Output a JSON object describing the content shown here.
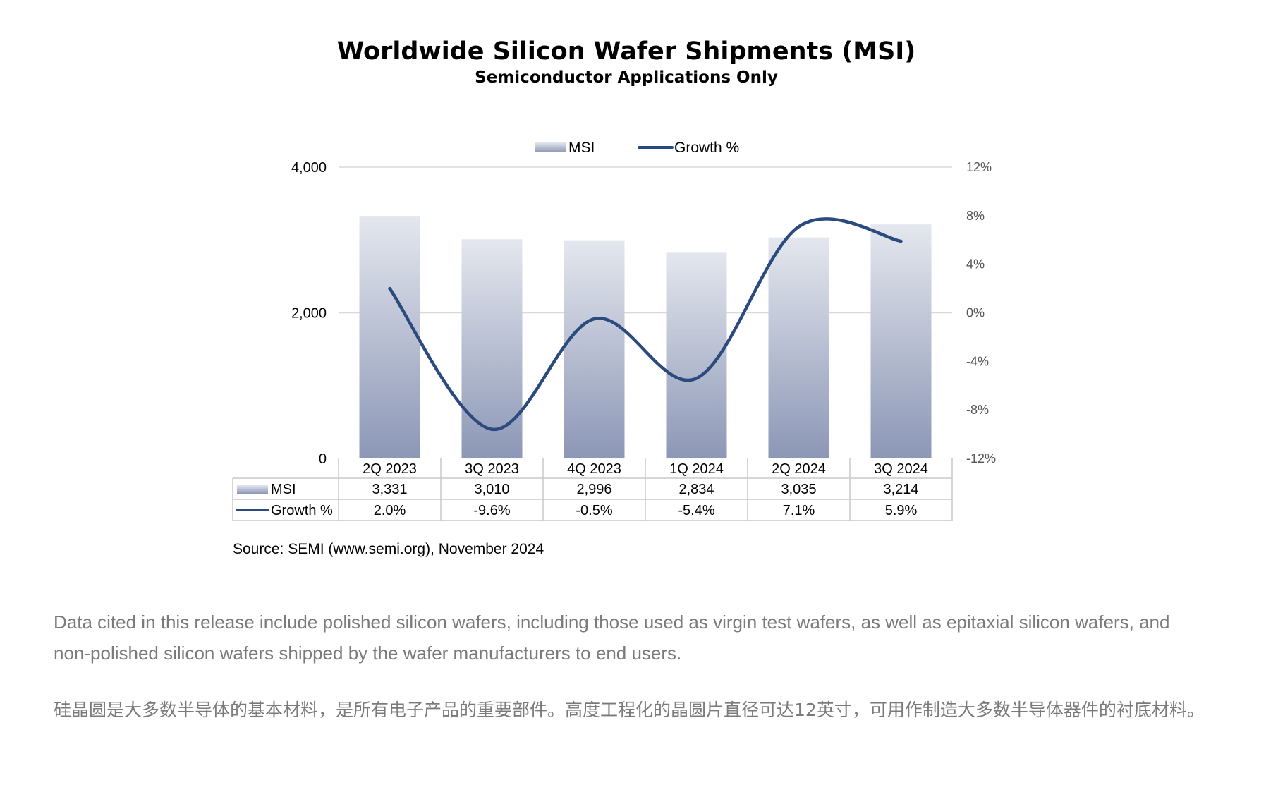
{
  "chart_data": {
    "type": "bar+line",
    "title": "Worldwide Silicon Wafer Shipments (MSI)",
    "subtitle": "Semiconductor Applications Only",
    "categories": [
      "2Q 2023",
      "3Q 2023",
      "4Q 2023",
      "1Q 2024",
      "2Q 2024",
      "3Q 2024"
    ],
    "series": [
      {
        "name": "MSI",
        "type": "bar",
        "axis": "left",
        "values": [
          3331,
          3010,
          2996,
          2834,
          3035,
          3214
        ],
        "labels": [
          "3,331",
          "3,010",
          "2,996",
          "2,834",
          "3,035",
          "3,214"
        ]
      },
      {
        "name": "Growth %",
        "type": "line",
        "axis": "right",
        "values": [
          2.0,
          -9.6,
          -0.5,
          -5.4,
          7.1,
          5.9
        ],
        "labels": [
          "2.0%",
          "-9.6%",
          "-0.5%",
          "-5.4%",
          "7.1%",
          "5.9%"
        ]
      }
    ],
    "left_axis": {
      "min": 0,
      "max": 4000,
      "ticks": [
        0,
        2000,
        4000
      ],
      "tick_labels": [
        "0",
        "2,000",
        "4,000"
      ]
    },
    "right_axis": {
      "min": -12,
      "max": 12,
      "ticks": [
        -12,
        -8,
        -4,
        0,
        4,
        8,
        12
      ],
      "tick_labels": [
        "-12%",
        "-8%",
        "-4%",
        "0%",
        "4%",
        "8%",
        "12%"
      ]
    },
    "legend_position": "top-center",
    "data_table": true,
    "gridlines": true,
    "colors": {
      "bar_top": "#e4e7ee",
      "bar_bottom": "#8c97b6",
      "line": "#2b4a7e",
      "grid": "#d9d9d9",
      "table_border": "#c8c8c8"
    }
  },
  "source": "Source: SEMI (www.semi.org), November 2024",
  "paragraphs": {
    "en": "Data cited in this release include polished silicon wafers, including those used as virgin test wafers, as well as epitaxial silicon wafers, and non-polished silicon wafers shipped by the wafer manufacturers to end users.",
    "zh": "硅晶圆是大多数半导体的基本材料，是所有电子产品的重要部件。高度工程化的晶圆片直径可达12英寸，可用作制造大多数半导体器件的衬底材料。"
  }
}
